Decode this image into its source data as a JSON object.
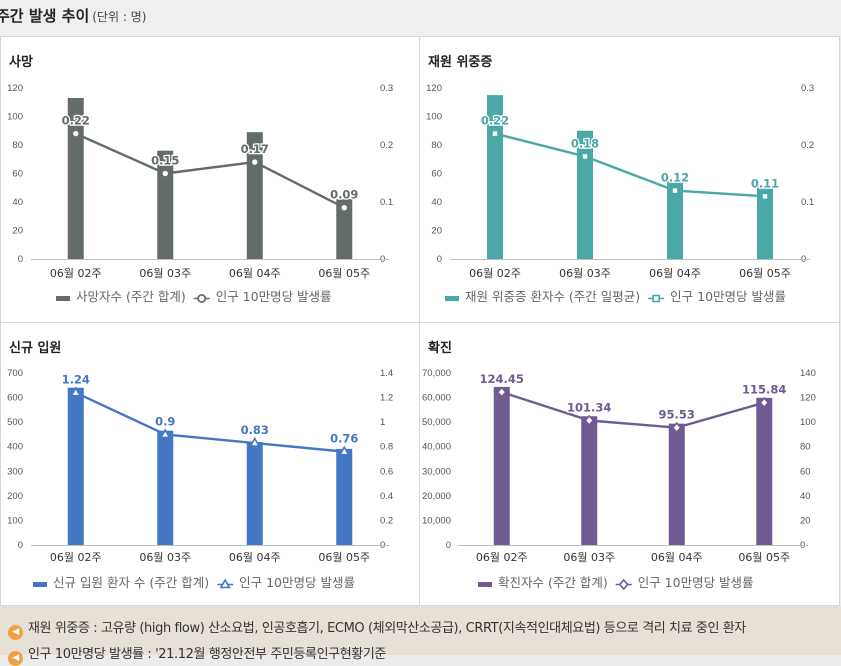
{
  "header": {
    "title": "주간 발생 추이",
    "unit": "(단위 : 명)"
  },
  "notes": [
    "재원 위중증 : 고유량 (high flow) 산소요법, 인공호흡기, ECMO (체외막산소공급), CRRT(지속적인대체요법) 등으로 격리 치료 중인 환자",
    "인구 10만명당 발생률 : '21.12월 행정안전부 주민등록인구현황기준"
  ],
  "chart_data": [
    {
      "type": "bar+line",
      "title": "사망",
      "color": "#636c6a",
      "categories": [
        "06월 02주",
        "06월 03주",
        "06월 04주",
        "06월 05주"
      ],
      "bar_name": "사망자수 (주간 합계)",
      "bar_values": [
        113,
        76,
        89,
        42
      ],
      "line_name": "인구 10만명당 발생률",
      "line_values": [
        0.22,
        0.15,
        0.17,
        0.09
      ],
      "line_labels": [
        "0.22",
        "0.15",
        "0.17",
        "0.09"
      ],
      "left_axis": {
        "min": 0,
        "max": 120,
        "ticks": [
          "0",
          "20",
          "40",
          "60",
          "80",
          "100",
          "120"
        ]
      },
      "right_axis": {
        "min": 0,
        "max": 0.3,
        "ticks": [
          "0",
          "0.1",
          "0.2",
          "0.3"
        ]
      },
      "marker": "circle"
    },
    {
      "type": "bar+line",
      "title": "재원 위중증",
      "color": "#4aa8a6",
      "categories": [
        "06월 02주",
        "06월 03주",
        "06월 04주",
        "06월 05주"
      ],
      "bar_name": "재원 위중증 환자수 (주간 일평균)",
      "bar_values": [
        115,
        90,
        55,
        51
      ],
      "line_name": "인구 10만명당 발생률",
      "line_values": [
        0.22,
        0.18,
        0.12,
        0.11
      ],
      "line_labels": [
        "0.22",
        "0.18",
        "0.12",
        "0.11"
      ],
      "left_axis": {
        "min": 0,
        "max": 120,
        "ticks": [
          "0",
          "20",
          "40",
          "60",
          "80",
          "100",
          "120"
        ]
      },
      "right_axis": {
        "min": 0,
        "max": 0.3,
        "ticks": [
          "0",
          "0.1",
          "0.2",
          "0.3"
        ]
      },
      "marker": "square"
    },
    {
      "type": "bar+line",
      "title": "신규 입원",
      "color": "#4477c4",
      "categories": [
        "06월 02주",
        "06월 03주",
        "06월 04주",
        "06월 05주"
      ],
      "bar_name": "신규 입원 환자 수 (주간 합계)",
      "bar_values": [
        640,
        465,
        419,
        391
      ],
      "line_name": "인구 10만명당 발생률",
      "line_values": [
        1.24,
        0.9,
        0.83,
        0.76
      ],
      "line_labels": [
        "1.24",
        "0.9",
        "0.83",
        "0.76"
      ],
      "left_axis": {
        "min": 0,
        "max": 700,
        "ticks": [
          "0",
          "100",
          "200",
          "300",
          "400",
          "500",
          "600",
          "700"
        ]
      },
      "right_axis": {
        "min": 0,
        "max": 1.4,
        "ticks": [
          "0",
          "0.2",
          "0.4",
          "0.6",
          "0.8",
          "1",
          "1.2",
          "1.4"
        ]
      },
      "marker": "triangle"
    },
    {
      "type": "bar+line",
      "title": "확진",
      "color": "#6f5a91",
      "categories": [
        "06월 02주",
        "06월 03주",
        "06월 04주",
        "06월 05주"
      ],
      "bar_name": "확진자수 (주간 합계)",
      "bar_values": [
        64327,
        52397,
        49392,
        59893
      ],
      "line_name": "인구 10만명당 발생률",
      "line_values": [
        124.45,
        101.34,
        95.53,
        115.84
      ],
      "line_labels": [
        "124.45",
        "101.34",
        "95.53",
        "115.84"
      ],
      "left_axis": {
        "min": 0,
        "max": 70000,
        "ticks": [
          "0",
          "10,000",
          "20,000",
          "30,000",
          "40,000",
          "50,000",
          "60,000",
          "70,000"
        ]
      },
      "right_axis": {
        "min": 0,
        "max": 140,
        "ticks": [
          "0",
          "20",
          "40",
          "60",
          "80",
          "100",
          "120",
          "140"
        ]
      },
      "marker": "diamond"
    }
  ]
}
